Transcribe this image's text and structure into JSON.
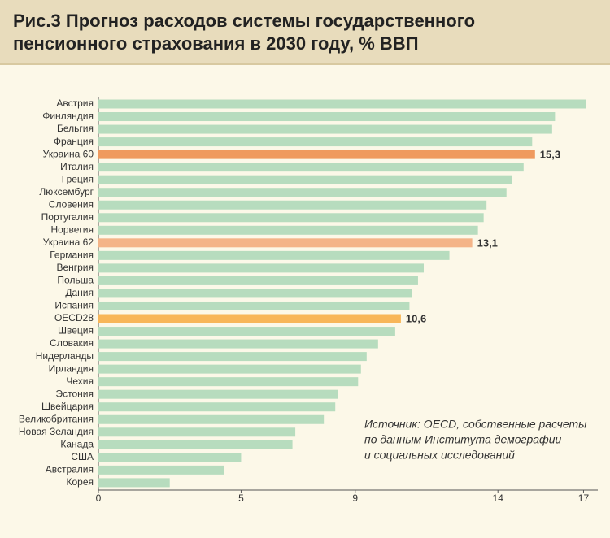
{
  "chart_data": {
    "type": "hbar",
    "title": "Рис.3 Прогноз расходов системы государственного пенсионного страхования в 2030 году, % ВВП",
    "annotation": [
      "Источник: OECD, собственные расчеты",
      "по данным Института демографии",
      "и социальных исследований"
    ],
    "categories": [
      "Австрия",
      "Финляндия",
      "Бельгия",
      "Франция",
      "Украина 60",
      "Италия",
      "Греция",
      "Люксембург",
      "Словения",
      "Португалия",
      "Норвегия",
      "Украина 62",
      "Германия",
      "Венгрия",
      "Польша",
      "Дания",
      "Испания",
      "OECD28",
      "Швеция",
      "Словакия",
      "Нидерланды",
      "Ирландия",
      "Чехия",
      "Эстония",
      "Швейцария",
      "Великобритания",
      "Новая Зеландия",
      "Канада",
      "США",
      "Австралия",
      "Корея"
    ],
    "values": [
      17.1,
      16.0,
      15.9,
      15.2,
      15.3,
      14.9,
      14.5,
      14.3,
      13.6,
      13.5,
      13.3,
      13.1,
      12.3,
      11.4,
      11.2,
      11.0,
      10.9,
      10.6,
      10.4,
      9.8,
      9.4,
      9.2,
      9.1,
      8.4,
      8.3,
      7.9,
      6.9,
      6.8,
      5.0,
      4.4,
      2.5
    ],
    "value_labels": [
      null,
      null,
      null,
      null,
      "15,3",
      null,
      null,
      null,
      null,
      null,
      null,
      "13,1",
      null,
      null,
      null,
      null,
      null,
      "10,6",
      null,
      null,
      null,
      null,
      null,
      null,
      null,
      null,
      null,
      null,
      null,
      null,
      null
    ],
    "colors": [
      "#b7dcbe",
      "#b7dcbe",
      "#b7dcbe",
      "#b7dcbe",
      "#ef9a5e",
      "#b7dcbe",
      "#b7dcbe",
      "#b7dcbe",
      "#b7dcbe",
      "#b7dcbe",
      "#b7dcbe",
      "#f4b488",
      "#b7dcbe",
      "#b7dcbe",
      "#b7dcbe",
      "#b7dcbe",
      "#b7dcbe",
      "#f8b658",
      "#b7dcbe",
      "#b7dcbe",
      "#b7dcbe",
      "#b7dcbe",
      "#b7dcbe",
      "#b7dcbe",
      "#b7dcbe",
      "#b7dcbe",
      "#b7dcbe",
      "#b7dcbe",
      "#b7dcbe",
      "#b7dcbe",
      "#b7dcbe"
    ],
    "xlim": [
      0,
      17.5
    ],
    "xticks": [
      0,
      5,
      9,
      14,
      17
    ]
  }
}
